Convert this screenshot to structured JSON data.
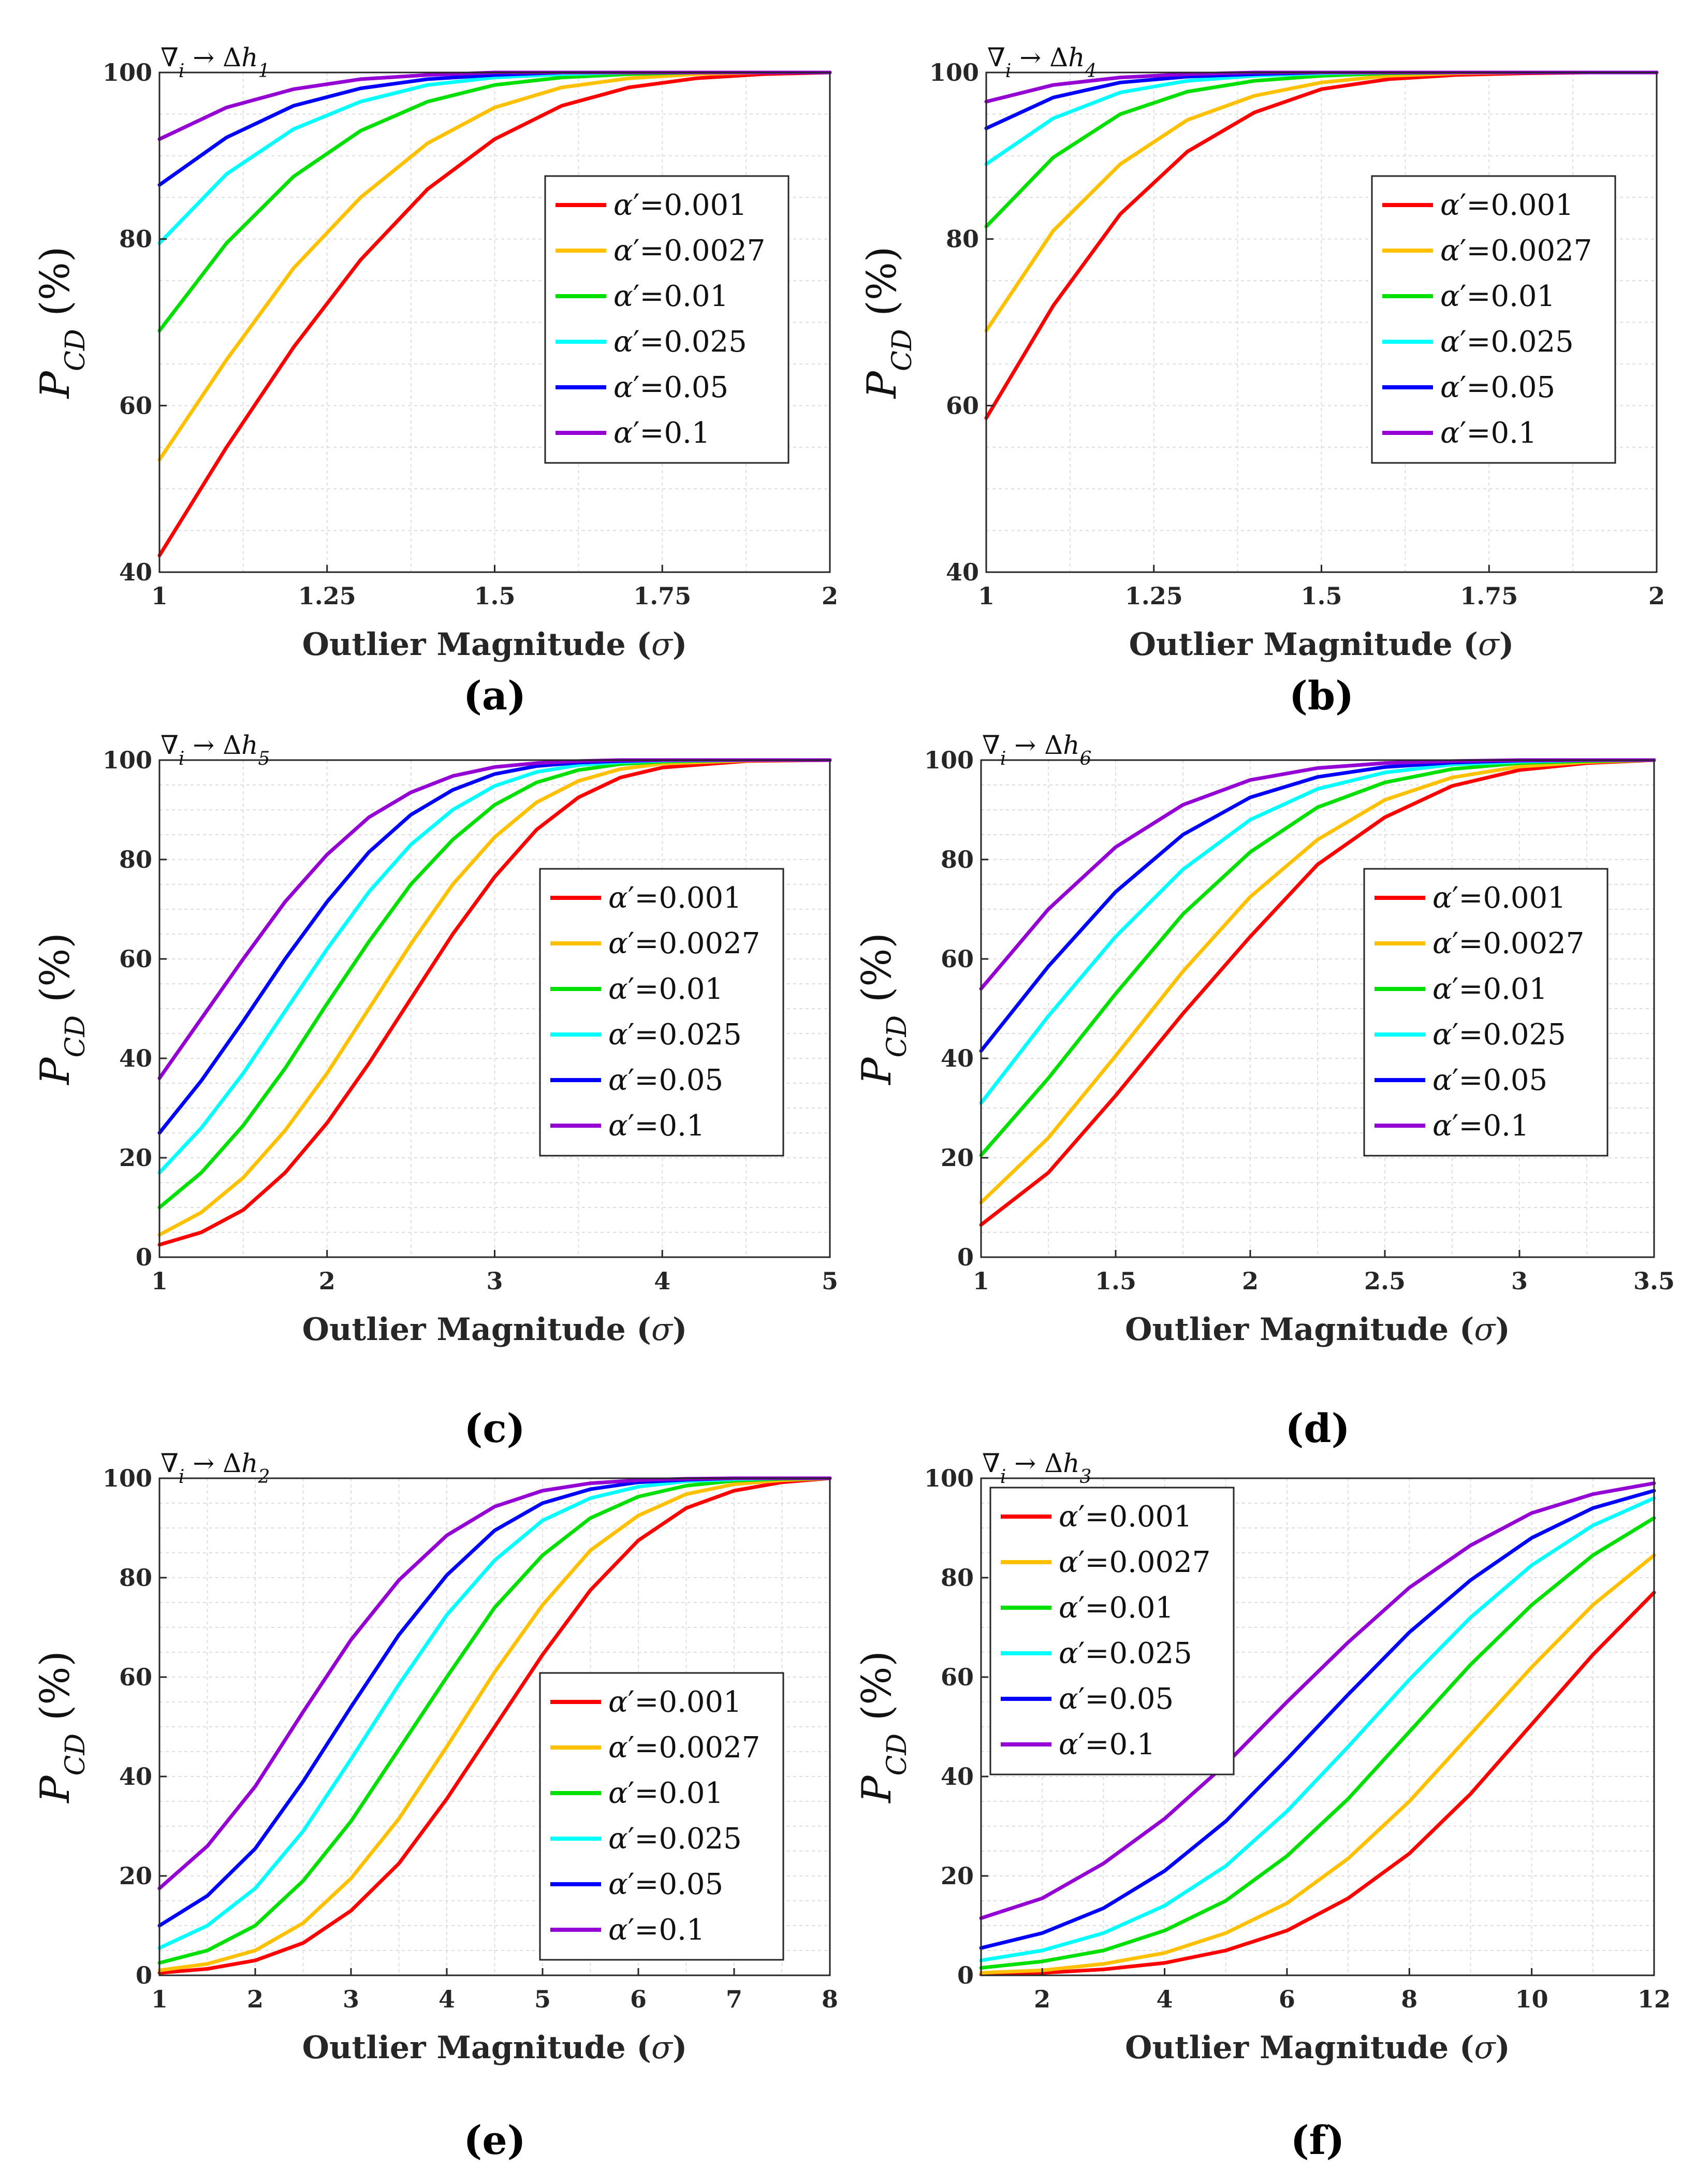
{
  "chart_data": [
    {
      "panel": "a",
      "type": "line",
      "title": "∇i → Δh1",
      "xlabel": "Outlier Magnitude (σ)",
      "ylabel": "P_CD (%)",
      "xlim": [
        1,
        2
      ],
      "ylim": [
        40,
        100
      ],
      "xticks": [
        1,
        1.25,
        1.5,
        1.75,
        2
      ],
      "xticklabels": [
        "1",
        "1.25",
        "1.5",
        "1.75",
        "2"
      ],
      "yticks": [
        40,
        60,
        80,
        100
      ],
      "legend": "upper-right",
      "x": [
        1,
        1.1,
        1.2,
        1.3,
        1.4,
        1.5,
        1.6,
        1.7,
        1.8,
        1.9,
        2
      ],
      "series": [
        {
          "name": "α′=0.001",
          "color": "#ff0000",
          "values": [
            42,
            55,
            67,
            77.5,
            86,
            92,
            96,
            98.2,
            99.3,
            99.8,
            100
          ]
        },
        {
          "name": "α′=0.0027",
          "color": "#ffc000",
          "values": [
            53.5,
            65.5,
            76.5,
            85,
            91.5,
            95.8,
            98.2,
            99.3,
            99.8,
            100,
            100
          ]
        },
        {
          "name": "α′=0.01",
          "color": "#00e000",
          "values": [
            69,
            79.5,
            87.5,
            93,
            96.5,
            98.5,
            99.4,
            99.8,
            100,
            100,
            100
          ]
        },
        {
          "name": "α′=0.025",
          "color": "#00ffff",
          "values": [
            79.5,
            87.8,
            93.2,
            96.5,
            98.5,
            99.4,
            99.8,
            100,
            100,
            100,
            100
          ]
        },
        {
          "name": "α′=0.05",
          "color": "#0000ff",
          "values": [
            86.5,
            92.2,
            96,
            98.1,
            99.2,
            99.7,
            100,
            100,
            100,
            100,
            100
          ]
        },
        {
          "name": "α′=0.1",
          "color": "#9400d3",
          "values": [
            92,
            95.8,
            98,
            99.2,
            99.7,
            100,
            100,
            100,
            100,
            100,
            100
          ]
        }
      ],
      "panel_label": "(a)"
    },
    {
      "panel": "b",
      "type": "line",
      "title": "∇i → Δh4",
      "xlabel": "Outlier Magnitude (σ)",
      "ylabel": "P_CD (%)",
      "xlim": [
        1,
        2
      ],
      "ylim": [
        40,
        100
      ],
      "xticks": [
        1,
        1.25,
        1.5,
        1.75,
        2
      ],
      "xticklabels": [
        "1",
        "1.25",
        "1.5",
        "1.75",
        "2"
      ],
      "yticks": [
        40,
        60,
        80,
        100
      ],
      "legend": "upper-right",
      "x": [
        1,
        1.1,
        1.2,
        1.3,
        1.4,
        1.5,
        1.6,
        1.7,
        1.8,
        1.9,
        2
      ],
      "series": [
        {
          "name": "α′=0.001",
          "color": "#ff0000",
          "values": [
            58.5,
            72,
            83,
            90.5,
            95.2,
            98,
            99.2,
            99.7,
            99.9,
            100,
            100
          ]
        },
        {
          "name": "α′=0.0027",
          "color": "#ffc000",
          "values": [
            69,
            81,
            89,
            94.3,
            97.2,
            98.8,
            99.6,
            99.9,
            100,
            100,
            100
          ]
        },
        {
          "name": "α′=0.01",
          "color": "#00e000",
          "values": [
            81.5,
            89.8,
            95,
            97.7,
            99,
            99.6,
            99.9,
            100,
            100,
            100,
            100
          ]
        },
        {
          "name": "α′=0.025",
          "color": "#00ffff",
          "values": [
            89,
            94.5,
            97.6,
            99,
            99.6,
            99.9,
            100,
            100,
            100,
            100,
            100
          ]
        },
        {
          "name": "α′=0.05",
          "color": "#0000ff",
          "values": [
            93.3,
            97,
            98.8,
            99.5,
            99.8,
            100,
            100,
            100,
            100,
            100,
            100
          ]
        },
        {
          "name": "α′=0.1",
          "color": "#9400d3",
          "values": [
            96.5,
            98.5,
            99.4,
            99.8,
            100,
            100,
            100,
            100,
            100,
            100,
            100
          ]
        }
      ],
      "panel_label": "(b)"
    },
    {
      "panel": "c",
      "type": "line",
      "title": "∇i → Δh5",
      "xlabel": "Outlier Magnitude (σ)",
      "ylabel": "P_CD (%)",
      "xlim": [
        1,
        5
      ],
      "ylim": [
        0,
        100
      ],
      "xticks": [
        1,
        2,
        3,
        4,
        5
      ],
      "xticklabels": [
        "1",
        "2",
        "3",
        "4",
        "5"
      ],
      "yticks": [
        0,
        20,
        40,
        60,
        80,
        100
      ],
      "legend": "center-right",
      "x": [
        1,
        1.25,
        1.5,
        1.75,
        2,
        2.25,
        2.5,
        2.75,
        3,
        3.25,
        3.5,
        3.75,
        4,
        4.5,
        5
      ],
      "series": [
        {
          "name": "α′=0.001",
          "color": "#ff0000",
          "values": [
            2.5,
            5,
            9.5,
            17,
            27,
            39,
            52,
            65,
            76.5,
            86,
            92.5,
            96.5,
            98.5,
            99.8,
            100
          ]
        },
        {
          "name": "α′=0.0027",
          "color": "#ffc000",
          "values": [
            4.5,
            9,
            16,
            25.5,
            37,
            50,
            63,
            75,
            84.5,
            91.5,
            95.8,
            98.2,
            99.3,
            99.9,
            100
          ]
        },
        {
          "name": "α′=0.01",
          "color": "#00e000",
          "values": [
            10,
            17,
            26.5,
            38,
            51,
            63.5,
            75,
            84,
            91,
            95.5,
            98,
            99.2,
            99.7,
            100,
            100
          ]
        },
        {
          "name": "α′=0.025",
          "color": "#00ffff",
          "values": [
            17,
            26,
            37,
            49.5,
            62,
            73.5,
            83,
            90,
            94.8,
            97.6,
            99,
            99.6,
            99.9,
            100,
            100
          ]
        },
        {
          "name": "α′=0.05",
          "color": "#0000ff",
          "values": [
            25,
            35.5,
            47.5,
            60,
            71.5,
            81.5,
            89,
            94,
            97.2,
            98.8,
            99.5,
            99.8,
            100,
            100,
            100
          ]
        },
        {
          "name": "α′=0.1",
          "color": "#9400d3",
          "values": [
            36,
            48,
            60,
            71.5,
            81,
            88.5,
            93.5,
            96.8,
            98.6,
            99.4,
            99.8,
            100,
            100,
            100,
            100
          ]
        }
      ],
      "panel_label": "(c)"
    },
    {
      "panel": "d",
      "type": "line",
      "title": "∇i → Δh6",
      "xlabel": "Outlier Magnitude (σ)",
      "ylabel": "P_CD (%)",
      "xlim": [
        1,
        3.5
      ],
      "ylim": [
        0,
        100
      ],
      "xticks": [
        1,
        1.5,
        2,
        2.5,
        3,
        3.5
      ],
      "xticklabels": [
        "1",
        "1.5",
        "2",
        "2.5",
        "3",
        "3.5"
      ],
      "yticks": [
        0,
        20,
        40,
        60,
        80,
        100
      ],
      "legend": "center-right",
      "x": [
        1,
        1.25,
        1.5,
        1.75,
        2,
        2.25,
        2.5,
        2.75,
        3,
        3.25,
        3.5
      ],
      "series": [
        {
          "name": "α′=0.001",
          "color": "#ff0000",
          "values": [
            6.5,
            17,
            32.5,
            49,
            64.5,
            79,
            88.5,
            94.8,
            98,
            99.4,
            100
          ]
        },
        {
          "name": "α′=0.0027",
          "color": "#ffc000",
          "values": [
            11,
            24,
            40.5,
            57.5,
            72.5,
            84,
            92,
            96.5,
            98.7,
            99.6,
            100
          ]
        },
        {
          "name": "α′=0.01",
          "color": "#00e000",
          "values": [
            20.5,
            36,
            53,
            69,
            81.5,
            90.5,
            95.5,
            98.2,
            99.4,
            99.8,
            100
          ]
        },
        {
          "name": "α′=0.025",
          "color": "#00ffff",
          "values": [
            31,
            48.5,
            64.5,
            78,
            88,
            94.2,
            97.5,
            99.1,
            99.7,
            100,
            100
          ]
        },
        {
          "name": "α′=0.05",
          "color": "#0000ff",
          "values": [
            41.5,
            58.5,
            73.5,
            85,
            92.5,
            96.6,
            98.6,
            99.5,
            99.9,
            100,
            100
          ]
        },
        {
          "name": "α′=0.1",
          "color": "#9400d3",
          "values": [
            54,
            70,
            82.5,
            91,
            96,
            98.4,
            99.4,
            99.8,
            100,
            100,
            100
          ]
        }
      ],
      "panel_label": "(d)"
    },
    {
      "panel": "e",
      "type": "line",
      "title": "∇i → Δh2",
      "xlabel": "Outlier Magnitude (σ)",
      "ylabel": "P_CD (%)",
      "xlim": [
        1,
        8
      ],
      "ylim": [
        0,
        100
      ],
      "xticks": [
        1,
        2,
        3,
        4,
        5,
        6,
        7,
        8
      ],
      "xticklabels": [
        "1",
        "2",
        "3",
        "4",
        "5",
        "6",
        "7",
        "8"
      ],
      "yticks": [
        0,
        20,
        40,
        60,
        80,
        100
      ],
      "legend": "lower-right",
      "x": [
        1,
        1.5,
        2,
        2.5,
        3,
        3.5,
        4,
        4.5,
        5,
        5.5,
        6,
        6.5,
        7,
        7.5,
        8
      ],
      "series": [
        {
          "name": "α′=0.001",
          "color": "#ff0000",
          "values": [
            0.5,
            1.3,
            3,
            6.5,
            13,
            22.5,
            35.5,
            50,
            64.5,
            77.5,
            87.5,
            94,
            97.5,
            99.2,
            100
          ]
        },
        {
          "name": "α′=0.0027",
          "color": "#ffc000",
          "values": [
            1,
            2.3,
            5,
            10.5,
            19.5,
            31.5,
            46,
            61,
            74.5,
            85.5,
            92.5,
            96.8,
            98.8,
            99.6,
            100
          ]
        },
        {
          "name": "α′=0.01",
          "color": "#00e000",
          "values": [
            2.5,
            5,
            10,
            19,
            31,
            45.5,
            60,
            74,
            84.5,
            92,
            96.3,
            98.5,
            99.5,
            99.9,
            100
          ]
        },
        {
          "name": "α′=0.025",
          "color": "#00ffff",
          "values": [
            5.5,
            10,
            17.5,
            29,
            43.5,
            58.5,
            72.5,
            83.5,
            91.5,
            96,
            98.3,
            99.4,
            99.8,
            100,
            100
          ]
        },
        {
          "name": "α′=0.05",
          "color": "#0000ff",
          "values": [
            10,
            16,
            25.5,
            39,
            54,
            68.5,
            80.5,
            89.5,
            95,
            97.8,
            99.2,
            99.7,
            100,
            100,
            100
          ]
        },
        {
          "name": "α′=0.1",
          "color": "#9400d3",
          "values": [
            17.5,
            26,
            38,
            53,
            67.5,
            79.5,
            88.5,
            94.3,
            97.5,
            99,
            99.6,
            99.9,
            100,
            100,
            100
          ]
        }
      ],
      "panel_label": "(e)"
    },
    {
      "panel": "f",
      "type": "line",
      "title": "∇i → Δh3",
      "xlabel": "Outlier Magnitude (σ)",
      "ylabel": "P_CD (%)",
      "xlim": [
        1,
        12
      ],
      "ylim": [
        0,
        100
      ],
      "xticks": [
        2,
        4,
        6,
        8,
        10,
        12
      ],
      "xticklabels": [
        "2",
        "4",
        "6",
        "8",
        "10",
        "12"
      ],
      "yticks": [
        0,
        20,
        40,
        60,
        80,
        100
      ],
      "legend": "upper-left",
      "x": [
        1,
        2,
        3,
        4,
        5,
        6,
        7,
        8,
        9,
        10,
        11,
        12
      ],
      "series": [
        {
          "name": "α′=0.001",
          "color": "#ff0000",
          "values": [
            0.2,
            0.5,
            1.2,
            2.5,
            5,
            9,
            15.5,
            24.5,
            36.5,
            50.5,
            64.5,
            77
          ]
        },
        {
          "name": "α′=0.0027",
          "color": "#ffc000",
          "values": [
            0.5,
            1,
            2.3,
            4.5,
            8.5,
            14.5,
            23.5,
            35,
            48.5,
            62,
            74.5,
            84.5
          ]
        },
        {
          "name": "α′=0.01",
          "color": "#00e000",
          "values": [
            1.5,
            2.8,
            5,
            9,
            15,
            24,
            35.5,
            49,
            62.5,
            74.5,
            84.5,
            92
          ]
        },
        {
          "name": "α′=0.025",
          "color": "#00ffff",
          "values": [
            3,
            5,
            8.5,
            14,
            22,
            33,
            46,
            59.5,
            72,
            82.5,
            90.5,
            96
          ]
        },
        {
          "name": "α′=0.05",
          "color": "#0000ff",
          "values": [
            5.5,
            8.5,
            13.5,
            21,
            31,
            43.5,
            56.5,
            69,
            79.5,
            88,
            94,
            97.5
          ]
        },
        {
          "name": "α′=0.1",
          "color": "#9400d3",
          "values": [
            11.5,
            15.5,
            22.5,
            31.5,
            42.5,
            55,
            67,
            78,
            86.5,
            93,
            96.8,
            99
          ]
        }
      ],
      "panel_label": "(f)"
    }
  ]
}
